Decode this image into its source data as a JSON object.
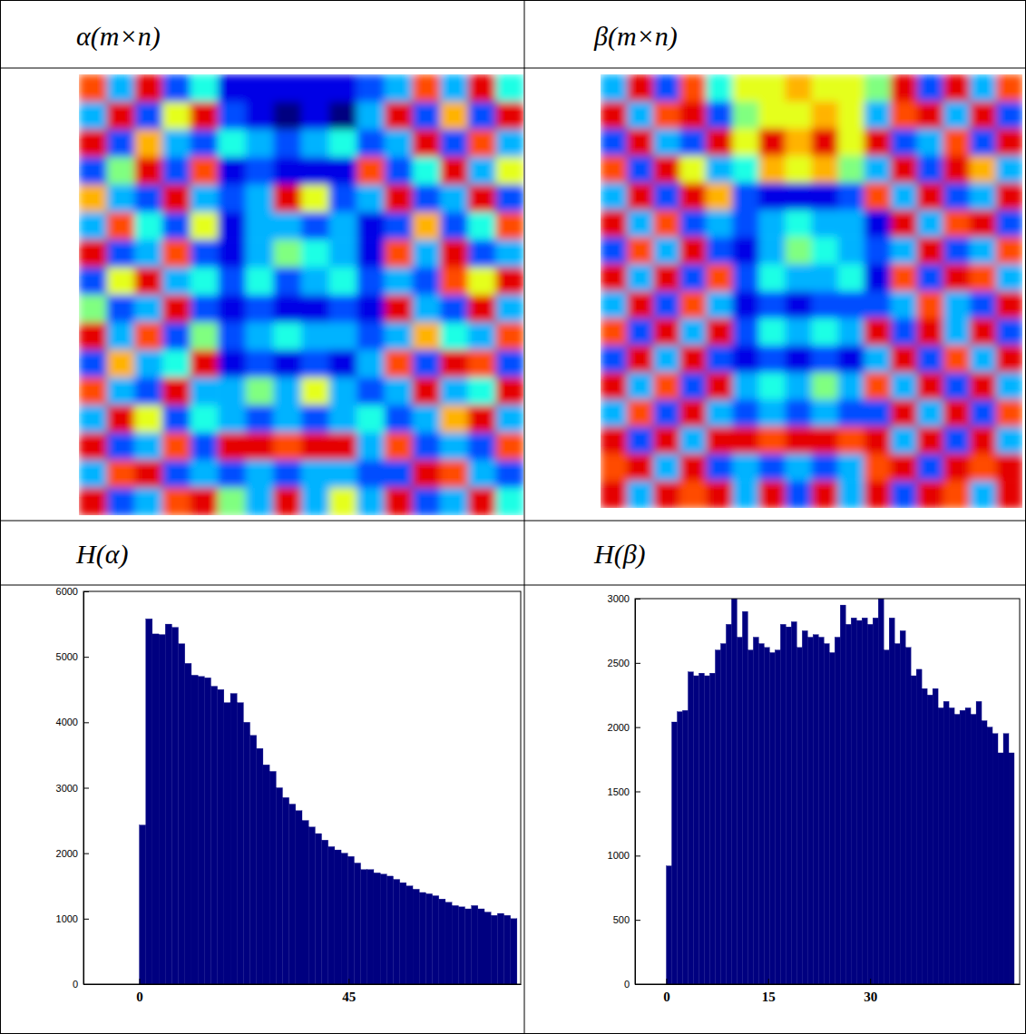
{
  "chart_data": [
    {
      "type": "heatmap",
      "title": "α(m×n)",
      "tick_labels": false,
      "zlim": [
        0,
        1
      ],
      "cells": [
        [
          0.8,
          0.3,
          0.9,
          0.2,
          0.4,
          0.1,
          0.1,
          0.1,
          0.1,
          0.1,
          0.2,
          0.3,
          0.8,
          0.3,
          0.9,
          0.4
        ],
        [
          0.3,
          0.9,
          0.2,
          0.6,
          0.9,
          0.2,
          0.1,
          0.0,
          0.1,
          0.0,
          0.3,
          0.9,
          0.2,
          0.7,
          0.2,
          0.9
        ],
        [
          0.9,
          0.2,
          0.7,
          0.3,
          0.2,
          0.4,
          0.3,
          0.2,
          0.3,
          0.4,
          0.2,
          0.3,
          0.9,
          0.2,
          0.8,
          0.3
        ],
        [
          0.2,
          0.5,
          0.9,
          0.2,
          0.8,
          0.1,
          0.2,
          0.1,
          0.1,
          0.1,
          0.8,
          0.2,
          0.4,
          0.9,
          0.3,
          0.6
        ],
        [
          0.7,
          0.3,
          0.2,
          0.9,
          0.3,
          0.2,
          0.3,
          0.9,
          0.6,
          0.2,
          0.3,
          0.9,
          0.2,
          0.3,
          0.9,
          0.2
        ],
        [
          0.3,
          0.8,
          0.4,
          0.2,
          0.6,
          0.1,
          0.3,
          0.3,
          0.2,
          0.3,
          0.1,
          0.2,
          0.7,
          0.2,
          0.4,
          0.8
        ],
        [
          0.9,
          0.2,
          0.3,
          0.8,
          0.2,
          0.1,
          0.3,
          0.5,
          0.4,
          0.3,
          0.1,
          0.8,
          0.3,
          0.9,
          0.2,
          0.3
        ],
        [
          0.2,
          0.6,
          0.9,
          0.3,
          0.4,
          0.2,
          0.4,
          0.2,
          0.3,
          0.4,
          0.2,
          0.3,
          0.2,
          0.8,
          0.6,
          0.9
        ],
        [
          0.5,
          0.2,
          0.3,
          0.9,
          0.2,
          0.1,
          0.2,
          0.1,
          0.1,
          0.2,
          0.1,
          0.9,
          0.3,
          0.2,
          0.9,
          0.3
        ],
        [
          0.9,
          0.3,
          0.8,
          0.2,
          0.5,
          0.2,
          0.3,
          0.4,
          0.3,
          0.3,
          0.2,
          0.3,
          0.7,
          0.4,
          0.3,
          0.8
        ],
        [
          0.2,
          0.7,
          0.3,
          0.4,
          0.9,
          0.1,
          0.2,
          0.1,
          0.2,
          0.1,
          0.3,
          0.8,
          0.2,
          0.9,
          0.8,
          0.2
        ],
        [
          0.8,
          0.3,
          0.2,
          0.9,
          0.3,
          0.3,
          0.5,
          0.3,
          0.6,
          0.3,
          0.2,
          0.3,
          0.9,
          0.3,
          0.4,
          0.9
        ],
        [
          0.3,
          0.9,
          0.6,
          0.2,
          0.4,
          0.3,
          0.2,
          0.3,
          0.2,
          0.3,
          0.4,
          0.2,
          0.3,
          0.7,
          0.9,
          0.3
        ],
        [
          0.9,
          0.2,
          0.3,
          0.8,
          0.2,
          0.9,
          0.9,
          0.8,
          0.9,
          0.9,
          0.3,
          0.8,
          0.2,
          0.3,
          0.2,
          0.8
        ],
        [
          0.3,
          0.8,
          0.9,
          0.2,
          0.3,
          0.2,
          0.3,
          0.2,
          0.3,
          0.3,
          0.2,
          0.2,
          0.9,
          0.8,
          0.3,
          0.2
        ],
        [
          0.9,
          0.2,
          0.3,
          0.8,
          0.9,
          0.5,
          0.3,
          0.9,
          0.3,
          0.6,
          0.3,
          0.9,
          0.2,
          0.3,
          0.9,
          0.4
        ]
      ]
    },
    {
      "type": "heatmap",
      "title": "β(m×n)",
      "tick_labels": false,
      "zlim": [
        0,
        1
      ],
      "cells": [
        [
          0.3,
          0.9,
          0.2,
          0.8,
          0.4,
          0.6,
          0.6,
          0.7,
          0.6,
          0.6,
          0.5,
          0.9,
          0.2,
          0.9,
          0.3,
          0.8
        ],
        [
          0.9,
          0.3,
          0.8,
          0.9,
          0.2,
          0.5,
          0.6,
          0.6,
          0.7,
          0.6,
          0.3,
          0.8,
          0.9,
          0.3,
          0.9,
          0.2
        ],
        [
          0.2,
          0.9,
          0.3,
          0.2,
          0.9,
          0.6,
          0.9,
          0.7,
          0.9,
          0.6,
          0.9,
          0.2,
          0.3,
          0.8,
          0.2,
          0.9
        ],
        [
          0.8,
          0.2,
          0.9,
          0.6,
          0.3,
          0.4,
          0.7,
          0.6,
          0.7,
          0.5,
          0.3,
          0.9,
          0.2,
          0.9,
          0.7,
          0.3
        ],
        [
          0.3,
          0.9,
          0.2,
          0.9,
          0.7,
          0.2,
          0.1,
          0.1,
          0.1,
          0.2,
          0.8,
          0.3,
          0.9,
          0.2,
          0.3,
          0.9
        ],
        [
          0.9,
          0.3,
          0.8,
          0.2,
          0.3,
          0.2,
          0.3,
          0.4,
          0.3,
          0.3,
          0.1,
          0.9,
          0.3,
          0.8,
          0.9,
          0.2
        ],
        [
          0.2,
          0.8,
          0.3,
          0.9,
          0.2,
          0.1,
          0.3,
          0.5,
          0.4,
          0.3,
          0.2,
          0.3,
          0.9,
          0.2,
          0.3,
          0.8
        ],
        [
          0.9,
          0.3,
          0.9,
          0.2,
          0.8,
          0.2,
          0.4,
          0.3,
          0.3,
          0.4,
          0.1,
          0.8,
          0.2,
          0.9,
          0.8,
          0.3
        ],
        [
          0.3,
          0.9,
          0.2,
          0.8,
          0.3,
          0.1,
          0.2,
          0.1,
          0.2,
          0.2,
          0.2,
          0.3,
          0.8,
          0.3,
          0.2,
          0.9
        ],
        [
          0.8,
          0.2,
          0.9,
          0.3,
          0.9,
          0.2,
          0.4,
          0.3,
          0.4,
          0.3,
          0.9,
          0.2,
          0.9,
          0.3,
          0.9,
          0.2
        ],
        [
          0.2,
          0.9,
          0.3,
          0.9,
          0.2,
          0.1,
          0.2,
          0.1,
          0.2,
          0.1,
          0.3,
          0.9,
          0.2,
          0.8,
          0.3,
          0.9
        ],
        [
          0.9,
          0.3,
          0.8,
          0.2,
          0.9,
          0.3,
          0.4,
          0.3,
          0.5,
          0.3,
          0.8,
          0.3,
          0.9,
          0.2,
          0.9,
          0.3
        ],
        [
          0.3,
          0.8,
          0.2,
          0.9,
          0.3,
          0.2,
          0.3,
          0.2,
          0.3,
          0.2,
          0.2,
          0.9,
          0.3,
          0.9,
          0.2,
          0.8
        ],
        [
          0.9,
          0.2,
          0.9,
          0.3,
          0.9,
          0.9,
          0.8,
          0.9,
          0.9,
          0.8,
          0.9,
          0.3,
          0.9,
          0.2,
          0.9,
          0.3
        ],
        [
          0.8,
          0.9,
          0.3,
          0.9,
          0.2,
          0.3,
          0.2,
          0.3,
          0.2,
          0.3,
          0.8,
          0.9,
          0.2,
          0.9,
          0.8,
          0.9
        ],
        [
          0.9,
          0.3,
          0.9,
          0.8,
          0.9,
          0.3,
          0.9,
          0.2,
          0.9,
          0.3,
          0.9,
          0.2,
          0.9,
          0.8,
          0.3,
          0.9
        ]
      ]
    },
    {
      "type": "histogram",
      "title": "H(α)",
      "color": "#000080",
      "bins": [
        0,
        1.4,
        2.8,
        4.2,
        5.6,
        7,
        8.4,
        9.8,
        11.2,
        12.6,
        14,
        15.4,
        16.8,
        18.2,
        19.6,
        21,
        22.4,
        23.8,
        25.2,
        26.6,
        28,
        29.4,
        30.8,
        32.2,
        33.6,
        35,
        36.4,
        37.8,
        39.2,
        40.6,
        42,
        43.4,
        44.8,
        46.2,
        47.6,
        49,
        50.4,
        51.8,
        53.2,
        54.6,
        56,
        57.4,
        58.8,
        60.2,
        61.6,
        63,
        64.4,
        65.8,
        67.2,
        68.6,
        70,
        71.4,
        72.8,
        74.2,
        75.6,
        77,
        78.4,
        79.8,
        81.2
      ],
      "values": [
        2430,
        5580,
        5350,
        5340,
        5500,
        5450,
        5200,
        4900,
        4720,
        4700,
        4680,
        4550,
        4500,
        4300,
        4440,
        4300,
        4000,
        3800,
        3600,
        3350,
        3250,
        3000,
        2850,
        2750,
        2650,
        2500,
        2400,
        2300,
        2200,
        2100,
        2050,
        2000,
        1950,
        1850,
        1750,
        1750,
        1700,
        1680,
        1650,
        1600,
        1550,
        1500,
        1450,
        1400,
        1380,
        1350,
        1300,
        1250,
        1200,
        1180,
        1150,
        1200,
        1150,
        1100,
        1050,
        1080,
        1050,
        1000
      ],
      "xlim": [
        -12,
        82
      ],
      "xticks": [
        0,
        45
      ],
      "ylim": [
        0,
        6000
      ],
      "yticks": [
        0,
        1000,
        2000,
        3000,
        4000,
        5000,
        6000
      ]
    },
    {
      "type": "histogram",
      "title": "H(β)",
      "color": "#000080",
      "bins": [
        0,
        0.8,
        1.6,
        2.4,
        3.2,
        4,
        4.8,
        5.6,
        6.4,
        7.2,
        8,
        8.8,
        9.6,
        10.4,
        11.2,
        12,
        12.8,
        13.6,
        14.4,
        15.2,
        16,
        16.8,
        17.6,
        18.4,
        19.2,
        20,
        20.8,
        21.6,
        22.4,
        23.2,
        24,
        24.8,
        25.6,
        26.4,
        27.2,
        28,
        28.8,
        29.6,
        30.4,
        31.2,
        32,
        32.8,
        33.6,
        34.4,
        35.2,
        36,
        36.8,
        37.6,
        38.4,
        39.2,
        40,
        40.8,
        41.6,
        42.4,
        43.2,
        44,
        44.8,
        45.6,
        46.4,
        47.2,
        48,
        48.8,
        49.6,
        50.4,
        51.2
      ],
      "values": [
        920,
        2040,
        2120,
        2130,
        2430,
        2400,
        2420,
        2400,
        2420,
        2600,
        2650,
        2800,
        3000,
        2700,
        2900,
        2600,
        2700,
        2650,
        2620,
        2580,
        2600,
        2800,
        2780,
        2820,
        2620,
        2750,
        2700,
        2720,
        2700,
        2650,
        2580,
        2700,
        2950,
        2800,
        2850,
        2830,
        2850,
        2800,
        2850,
        3000,
        2600,
        2850,
        2650,
        2750,
        2620,
        2400,
        2450,
        2300,
        2250,
        2300,
        2150,
        2200,
        2150,
        2100,
        2130,
        2150,
        2100,
        2200,
        2050,
        2000,
        1950,
        1800,
        1950,
        1800
      ],
      "xlim": [
        -4.6,
        52
      ],
      "xticks": [
        0,
        15,
        30
      ],
      "ylim": [
        0,
        3000
      ],
      "yticks": [
        0,
        500,
        1000,
        1500,
        2000,
        2500,
        3000
      ]
    }
  ]
}
